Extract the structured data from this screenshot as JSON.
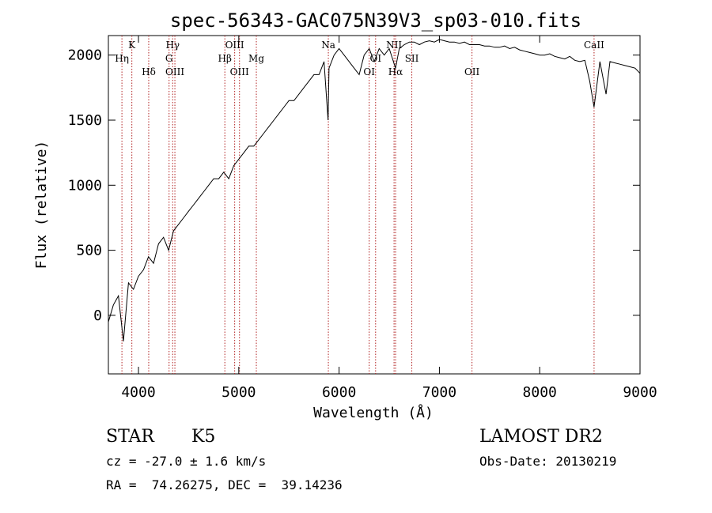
{
  "chart_data": {
    "type": "line",
    "title": "spec-56343-GAC075N39V3_sp03-010.fits",
    "xlabel": "Wavelength (Å)",
    "ylabel": "Flux (relative)",
    "xlim": [
      3700,
      9000
    ],
    "ylim": [
      -450,
      2150
    ],
    "x_ticks": [
      4000,
      5000,
      6000,
      7000,
      8000,
      9000
    ],
    "y_ticks": [
      0,
      500,
      1000,
      1500,
      2000
    ],
    "x_tick_labels": [
      "4000",
      "5000",
      "6000",
      "7000",
      "8000",
      "9000"
    ],
    "y_tick_labels": [
      "0",
      "500",
      "1000",
      "1500",
      "2000"
    ],
    "grid": false,
    "line_color": "#000000",
    "marker_color": "#b22222",
    "series": [
      {
        "x": [
          3700,
          3750,
          3800,
          3850,
          3900,
          3950,
          4000,
          4050,
          4100,
          4150,
          4200,
          4250,
          4300,
          4350,
          4400,
          4450,
          4500,
          4550,
          4600,
          4650,
          4700,
          4750,
          4800,
          4850,
          4900,
          4950,
          5000,
          5050,
          5100,
          5150,
          5200,
          5250,
          5300,
          5350,
          5400,
          5450,
          5500,
          5550,
          5600,
          5650,
          5700,
          5750,
          5800,
          5850,
          5890,
          5900,
          5950,
          6000,
          6050,
          6100,
          6150,
          6200,
          6250,
          6300,
          6350,
          6400,
          6450,
          6500,
          6563,
          6600,
          6650,
          6700,
          6750,
          6800,
          6850,
          6900,
          6950,
          7000,
          7050,
          7100,
          7150,
          7200,
          7250,
          7300,
          7350,
          7400,
          7450,
          7500,
          7550,
          7600,
          7650,
          7700,
          7750,
          7800,
          7850,
          7900,
          7950,
          8000,
          8050,
          8100,
          8150,
          8200,
          8250,
          8300,
          8350,
          8400,
          8450,
          8498,
          8542,
          8600,
          8662,
          8700,
          8750,
          8800,
          8850,
          8900,
          8950,
          9000
        ],
        "y": [
          -50,
          80,
          150,
          -200,
          250,
          200,
          300,
          350,
          450,
          400,
          550,
          600,
          500,
          650,
          700,
          750,
          800,
          850,
          900,
          950,
          1000,
          1050,
          1050,
          1100,
          1050,
          1150,
          1200,
          1250,
          1300,
          1300,
          1350,
          1400,
          1450,
          1500,
          1550,
          1600,
          1650,
          1650,
          1700,
          1750,
          1800,
          1850,
          1850,
          1950,
          1500,
          1900,
          2000,
          2050,
          2000,
          1950,
          1900,
          1850,
          2000,
          2050,
          1950,
          2050,
          2000,
          2050,
          1900,
          2050,
          2080,
          2100,
          2100,
          2080,
          2100,
          2110,
          2100,
          2120,
          2110,
          2100,
          2100,
          2090,
          2100,
          2080,
          2080,
          2080,
          2070,
          2070,
          2060,
          2060,
          2070,
          2050,
          2060,
          2040,
          2030,
          2020,
          2010,
          2000,
          2000,
          2010,
          1990,
          1980,
          1970,
          1990,
          1960,
          1950,
          1960,
          1800,
          1600,
          1950,
          1700,
          1950,
          1940,
          1930,
          1920,
          1910,
          1900,
          1860
        ]
      }
    ],
    "lines": [
      {
        "label": "Hη",
        "x": 3835,
        "row": 2
      },
      {
        "label": "K",
        "x": 3934,
        "row": 1
      },
      {
        "label": "Hδ",
        "x": 4102,
        "row": 3
      },
      {
        "label": "Hγ",
        "x": 4341,
        "row": 1
      },
      {
        "label": "G",
        "x": 4305,
        "row": 2
      },
      {
        "label": "OIII",
        "x": 4363,
        "row": 3
      },
      {
        "label": "Hβ",
        "x": 4861,
        "row": 2
      },
      {
        "label": "OIII",
        "x": 4959,
        "row": 1
      },
      {
        "label": "OIII",
        "x": 5007,
        "row": 3
      },
      {
        "label": "Mg",
        "x": 5175,
        "row": 2
      },
      {
        "label": "Na",
        "x": 5893,
        "row": 1
      },
      {
        "label": "OI",
        "x": 6300,
        "row": 3
      },
      {
        "label": "OI",
        "x": 6364,
        "row": 2
      },
      {
        "label": "NII",
        "x": 6548,
        "row": 1
      },
      {
        "label": "Hα",
        "x": 6563,
        "row": 3
      },
      {
        "label": "SII",
        "x": 6725,
        "row": 2
      },
      {
        "label": "OII",
        "x": 7325,
        "row": 3
      },
      {
        "label": "CaII",
        "x": 8542,
        "row": 1
      }
    ]
  },
  "info": {
    "object_class": "STAR",
    "subclass": "K5",
    "survey": "LAMOST DR2",
    "velocity": "cz = -27.0 ± 1.6 km/s",
    "obs_date": "Obs-Date: 20130219",
    "coords": "RA =  74.26275, DEC =  39.14236"
  }
}
